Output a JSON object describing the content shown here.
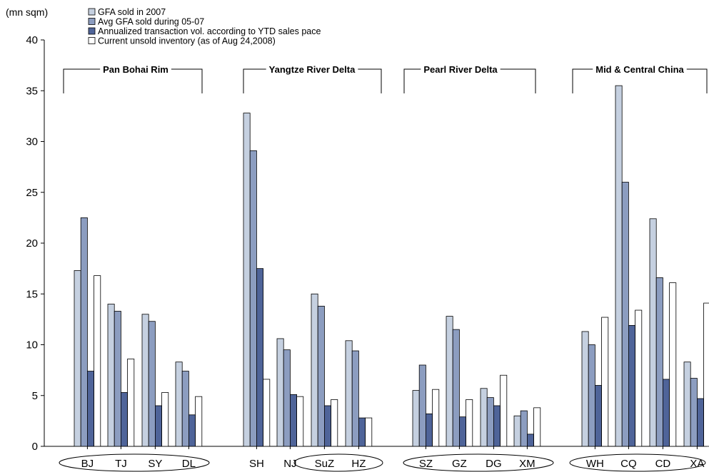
{
  "chart_data": {
    "type": "bar",
    "ylabel": "(mn sqm)",
    "ylim": [
      0,
      40
    ],
    "yticks": [
      0,
      5,
      10,
      15,
      20,
      25,
      30,
      35,
      40
    ],
    "grid": false,
    "legend_position": "top-left",
    "categories": [
      "BJ",
      "TJ",
      "SY",
      "DL",
      "SH",
      "NJ",
      "SuZ",
      "HZ",
      "SZ",
      "GZ",
      "DG",
      "XM",
      "WH",
      "CQ",
      "CD",
      "XA"
    ],
    "regions": [
      {
        "name": "Pan Bohai Rim",
        "categories": [
          "BJ",
          "TJ",
          "SY",
          "DL"
        ]
      },
      {
        "name": "Yangtze River Delta",
        "categories": [
          "SH",
          "NJ",
          "SuZ",
          "HZ"
        ]
      },
      {
        "name": "Pearl River Delta",
        "categories": [
          "SZ",
          "GZ",
          "DG",
          "XM"
        ]
      },
      {
        "name": "Mid & Central China",
        "categories": [
          "WH",
          "CQ",
          "CD",
          "XA"
        ]
      }
    ],
    "series": [
      {
        "name": "GFA sold in 2007",
        "color": "#c5d0e0",
        "values": [
          17.3,
          14.0,
          13.0,
          8.3,
          32.8,
          10.6,
          15.0,
          10.4,
          5.5,
          12.8,
          5.7,
          3.0,
          11.3,
          35.5,
          22.4,
          8.3
        ]
      },
      {
        "name": "Avg GFA sold during 05-07",
        "color": "#8c9dc0",
        "values": [
          22.5,
          13.3,
          12.3,
          7.4,
          29.1,
          9.5,
          13.8,
          9.4,
          8.0,
          11.5,
          4.8,
          3.5,
          10.0,
          26.0,
          16.6,
          6.7
        ]
      },
      {
        "name": "Annualized transaction vol. according to YTD sales pace",
        "color": "#4f6499",
        "values": [
          7.4,
          5.3,
          4.0,
          3.1,
          17.5,
          5.1,
          4.0,
          2.8,
          3.2,
          2.9,
          4.0,
          1.2,
          6.0,
          11.9,
          6.6,
          4.7
        ]
      },
      {
        "name": "Current unsold inventory (as of Aug 24,2008)",
        "color": "#ffffff",
        "values": [
          16.8,
          8.6,
          5.3,
          4.9,
          6.6,
          4.9,
          4.6,
          2.8,
          5.6,
          4.6,
          7.0,
          3.8,
          12.7,
          13.4,
          16.1,
          14.1
        ]
      }
    ]
  }
}
